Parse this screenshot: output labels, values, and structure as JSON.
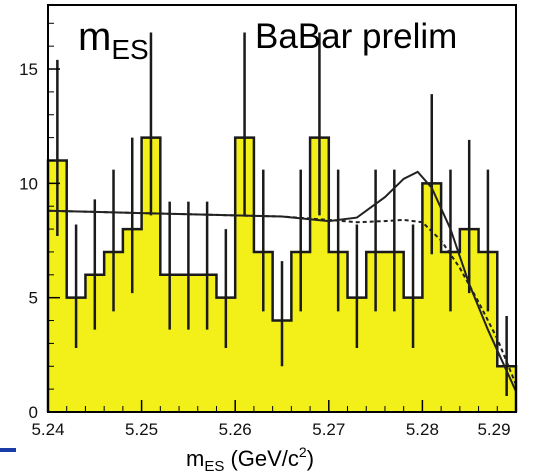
{
  "chart_data": {
    "type": "bar",
    "title_left_main": "m",
    "title_left_sub": "ES",
    "title_right": "BaBar prelim",
    "xlabel_main": "m",
    "xlabel_sub": "ES",
    "xlabel_unit_open": " (GeV/c",
    "xlabel_unit_sup": "2",
    "xlabel_unit_close": ")",
    "ylabel": "",
    "xlim": [
      5.24,
      5.29
    ],
    "ylim": [
      0,
      17.8
    ],
    "x_ticks": [
      "5.24",
      "5.25",
      "5.26",
      "5.27",
      "5.28",
      "5.29"
    ],
    "y_ticks": [
      "0",
      "5",
      "10",
      "15"
    ],
    "bin_edges": [
      5.24,
      5.242,
      5.244,
      5.246,
      5.248,
      5.25,
      5.252,
      5.254,
      5.256,
      5.258,
      5.26,
      5.262,
      5.264,
      5.266,
      5.268,
      5.27,
      5.272,
      5.274,
      5.276,
      5.278,
      5.28,
      5.282,
      5.284,
      5.286,
      5.288,
      5.29
    ],
    "counts": [
      11,
      5,
      6,
      7,
      8,
      12,
      6,
      6,
      6,
      5,
      12,
      7,
      4,
      7,
      12,
      7,
      5,
      7,
      7,
      5,
      10,
      7,
      8,
      7,
      2
    ],
    "errors_up": [
      4.4,
      3.2,
      3.3,
      3.6,
      4.0,
      4.6,
      3.2,
      3.2,
      3.2,
      3.0,
      4.6,
      3.6,
      2.6,
      3.6,
      4.6,
      3.6,
      3.2,
      3.6,
      3.6,
      3.2,
      3.9,
      3.6,
      3.9,
      3.6,
      2.2
    ],
    "errors_down": [
      3.3,
      2.2,
      2.4,
      2.6,
      2.8,
      3.4,
      2.4,
      2.4,
      2.4,
      2.2,
      3.4,
      2.6,
      2.0,
      2.6,
      3.4,
      2.6,
      2.2,
      2.6,
      2.6,
      2.2,
      3.1,
      2.6,
      2.8,
      2.6,
      1.3
    ],
    "fill_color": "#f2ef19",
    "line_color": "#1a1a1a",
    "fit_total": {
      "x": [
        5.24,
        5.245,
        5.25,
        5.255,
        5.26,
        5.265,
        5.27,
        5.273,
        5.276,
        5.278,
        5.2795,
        5.281,
        5.283,
        5.285,
        5.287,
        5.289,
        5.29
      ],
      "y": [
        8.8,
        8.75,
        8.7,
        8.65,
        8.6,
        8.55,
        8.35,
        8.5,
        9.4,
        10.2,
        10.5,
        9.8,
        8.0,
        5.6,
        3.6,
        1.8,
        0.9
      ]
    },
    "fit_background": {
      "x": [
        5.24,
        5.245,
        5.25,
        5.255,
        5.26,
        5.265,
        5.27,
        5.273,
        5.276,
        5.278,
        5.28,
        5.282,
        5.284,
        5.286,
        5.288,
        5.29
      ],
      "y": [
        8.8,
        8.75,
        8.7,
        8.65,
        8.6,
        8.55,
        8.4,
        8.3,
        8.35,
        8.4,
        8.3,
        7.5,
        6.3,
        4.8,
        3.2,
        1.2
      ]
    }
  }
}
